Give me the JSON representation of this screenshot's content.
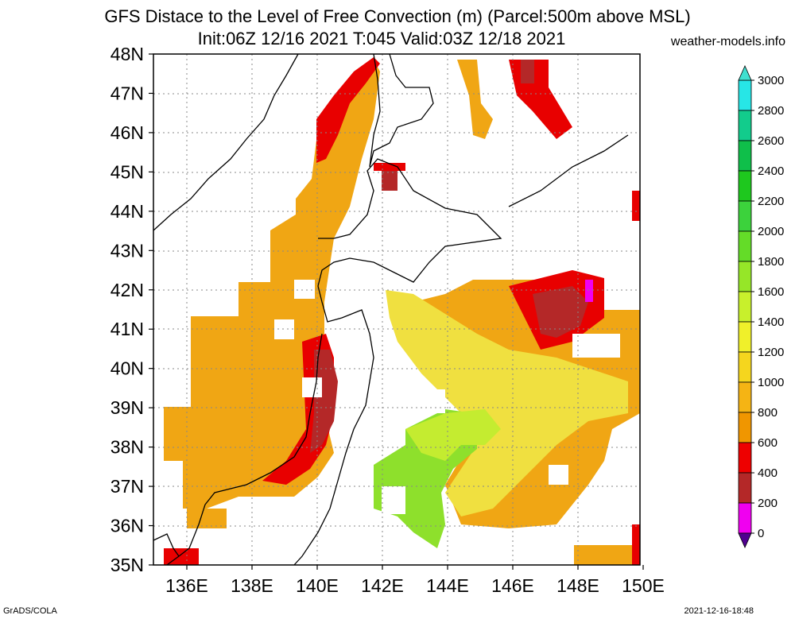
{
  "title": {
    "line1": "GFS Distace to the Level of Free Convection (m) (Parcel:500m above MSL)",
    "line2": "Init:06Z 12/16 2021 T:045 Valid:03Z 12/18 2021"
  },
  "site": "weather-models.info",
  "footer": {
    "left": "GrADS/COLA",
    "right": "2021-12-16-18:48"
  },
  "map": {
    "lat_labels": [
      "48N",
      "47N",
      "46N",
      "45N",
      "44N",
      "43N",
      "42N",
      "41N",
      "40N",
      "39N",
      "38N",
      "37N",
      "36N",
      "35N"
    ],
    "lon_labels": [
      "136E",
      "138E",
      "140E",
      "142E",
      "144E",
      "146E",
      "148E",
      "150E"
    ],
    "lon_range": [
      135,
      150
    ],
    "lat_range": [
      35,
      48
    ]
  },
  "colorbar": {
    "levels": [
      "3000",
      "2800",
      "2600",
      "2400",
      "2200",
      "2000",
      "1800",
      "1600",
      "1400",
      "1200",
      "1000",
      "800",
      "600",
      "400",
      "200",
      "0"
    ],
    "colors": [
      "#27e6e6",
      "#12cc8c",
      "#0fbf4a",
      "#1ec81e",
      "#3cd23c",
      "#64dc28",
      "#96e628",
      "#c8f02c",
      "#f0f02a",
      "#f5d61e",
      "#f5b414",
      "#f09600",
      "#ee0000",
      "#b42828",
      "#f000f0",
      "#46008c"
    ],
    "top_arrow_color": "#40e0d0",
    "bottom_arrow_color": "#500090"
  }
}
